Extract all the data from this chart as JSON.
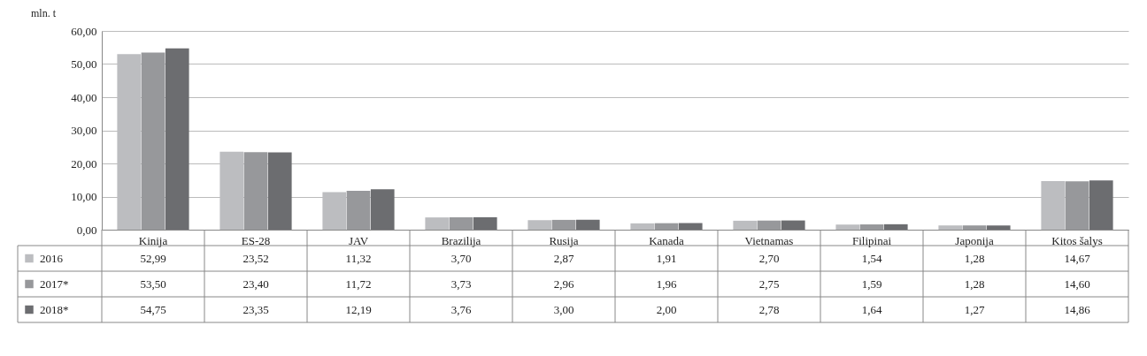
{
  "chart_data": {
    "type": "bar",
    "ylabel": "mln. t",
    "categories": [
      "Kinija",
      "ES-28",
      "JAV",
      "Brazilija",
      "Rusija",
      "Kanada",
      "Vietnamas",
      "Filipinai",
      "Japonija",
      "Kitos šalys"
    ],
    "series": [
      {
        "name": "2016",
        "color": "#bcbdc0",
        "values": [
          52.99,
          23.52,
          11.32,
          3.7,
          2.87,
          1.91,
          2.7,
          1.54,
          1.28,
          14.67
        ],
        "value_labels": [
          "52,99",
          "23,52",
          "11,32",
          "3,70",
          "2,87",
          "1,91",
          "2,70",
          "1,54",
          "1,28",
          "14,67"
        ]
      },
      {
        "name": "2017*",
        "color": "#97989b",
        "values": [
          53.5,
          23.4,
          11.72,
          3.73,
          2.96,
          1.96,
          2.75,
          1.59,
          1.28,
          14.6
        ],
        "value_labels": [
          "53,50",
          "23,40",
          "11,72",
          "3,73",
          "2,96",
          "1,96",
          "2,75",
          "1,59",
          "1,28",
          "14,60"
        ]
      },
      {
        "name": "2018*",
        "color": "#6c6d70",
        "values": [
          54.75,
          23.35,
          12.19,
          3.76,
          3.0,
          2.0,
          2.78,
          1.64,
          1.27,
          14.86
        ],
        "value_labels": [
          "54,75",
          "23,35",
          "12,19",
          "3,76",
          "3,00",
          "2,00",
          "2,78",
          "1,64",
          "1,27",
          "14,86"
        ]
      }
    ],
    "ylim": [
      0,
      60
    ],
    "yticks": [
      {
        "value": 0,
        "label": "0,00"
      },
      {
        "value": 10,
        "label": "10,00"
      },
      {
        "value": 20,
        "label": "20,00"
      },
      {
        "value": 30,
        "label": "30,00"
      },
      {
        "value": 40,
        "label": "40,00"
      },
      {
        "value": 50,
        "label": "50,00"
      },
      {
        "value": 60,
        "label": "60,00"
      }
    ],
    "grid": "y",
    "legend": "bottom left"
  }
}
